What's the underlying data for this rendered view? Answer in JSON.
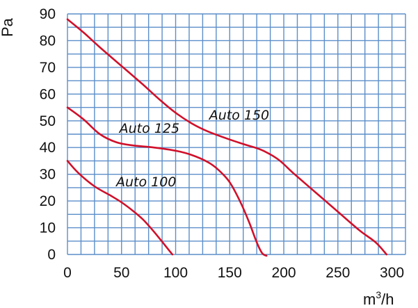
{
  "chart_data": {
    "type": "line",
    "title": "",
    "xlabel": "m",
    "xlabel_sup": "3",
    "xlabel_suffix": "/h",
    "ylabel": "Pa",
    "xlim": [
      0,
      312.5
    ],
    "ylim": [
      0,
      90
    ],
    "xticks": [
      0,
      50,
      100,
      150,
      200,
      250,
      300
    ],
    "yticks": [
      0,
      10,
      20,
      30,
      40,
      50,
      60,
      70,
      80,
      90
    ],
    "xgrid_step": 12.5,
    "ygrid_step": 5,
    "grid": true,
    "colors": {
      "grid": "#5b8ec9",
      "line": "#d0102a",
      "text": "#111111"
    },
    "series": [
      {
        "name": "Auto 150",
        "label_at": [
          131,
          50.5
        ],
        "x": [
          0,
          15,
          30,
          50,
          70,
          85,
          100,
          115,
          130,
          150,
          165,
          180,
          195,
          210,
          230,
          250,
          270,
          285,
          295
        ],
        "y": [
          88,
          83,
          77.5,
          70.5,
          63.5,
          58,
          53,
          49,
          46,
          43,
          41,
          39,
          35.5,
          30,
          23,
          16,
          9,
          4.5,
          0
        ]
      },
      {
        "name": "Auto 125",
        "label_at": [
          48,
          45.5
        ],
        "x": [
          0,
          15,
          30,
          45,
          60,
          80,
          100,
          115,
          130,
          140,
          150,
          160,
          168,
          175,
          180,
          184
        ],
        "y": [
          55,
          50.5,
          45,
          42,
          40.8,
          40,
          38.8,
          37.2,
          34.5,
          31.5,
          27,
          19.5,
          12,
          4.5,
          0.5,
          -0.5
        ]
      },
      {
        "name": "Auto 100",
        "label_at": [
          45,
          25.5
        ],
        "x": [
          0,
          10,
          25,
          40,
          50,
          60,
          70,
          80,
          90,
          97
        ],
        "y": [
          35,
          30.5,
          25.5,
          22,
          19.5,
          16.5,
          13,
          8.5,
          3.5,
          0
        ]
      }
    ]
  }
}
